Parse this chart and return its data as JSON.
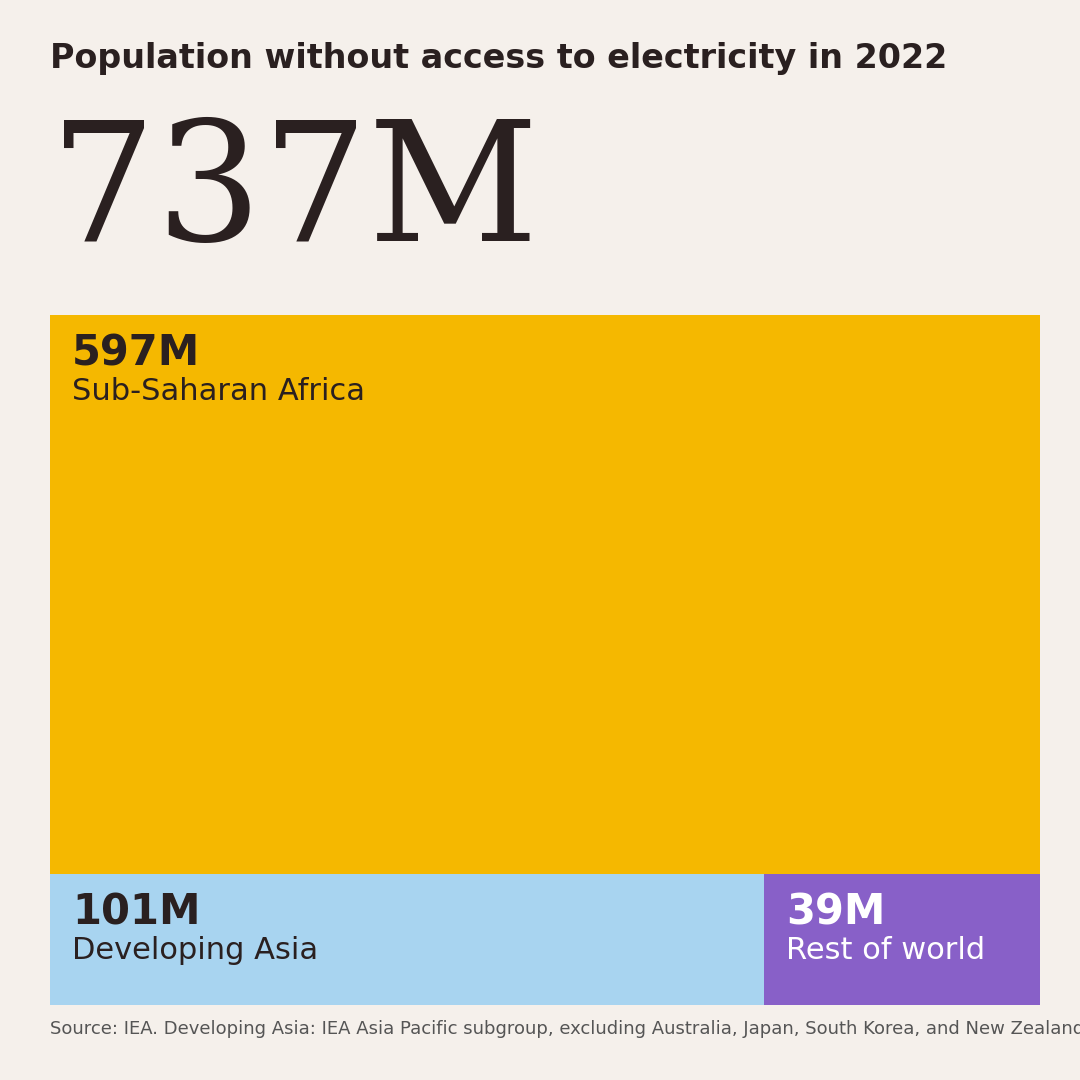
{
  "title": "Population without access to electricity in 2022",
  "total": "737M",
  "background_color": "#f5f0eb",
  "regions": [
    {
      "value": 597,
      "label_value": "597M",
      "label_region": "Sub-Saharan Africa",
      "color": "#f5b800",
      "text_color": "#2a2020"
    },
    {
      "value": 101,
      "label_value": "101M",
      "label_region": "Developing Asia",
      "color": "#a8d4f0",
      "text_color": "#2a2020"
    },
    {
      "value": 39,
      "label_value": "39M",
      "label_region": "Rest of world",
      "color": "#8860c8",
      "text_color": "#ffffff"
    }
  ],
  "total_value": 737,
  "source_text": "Source: IEA. Developing Asia: IEA Asia Pacific subgroup, excluding Australia, Japan, South Korea, and New Zealand",
  "title_fontsize": 24,
  "total_fontsize": 120,
  "value_fontsize": 30,
  "region_fontsize": 22,
  "source_fontsize": 13
}
